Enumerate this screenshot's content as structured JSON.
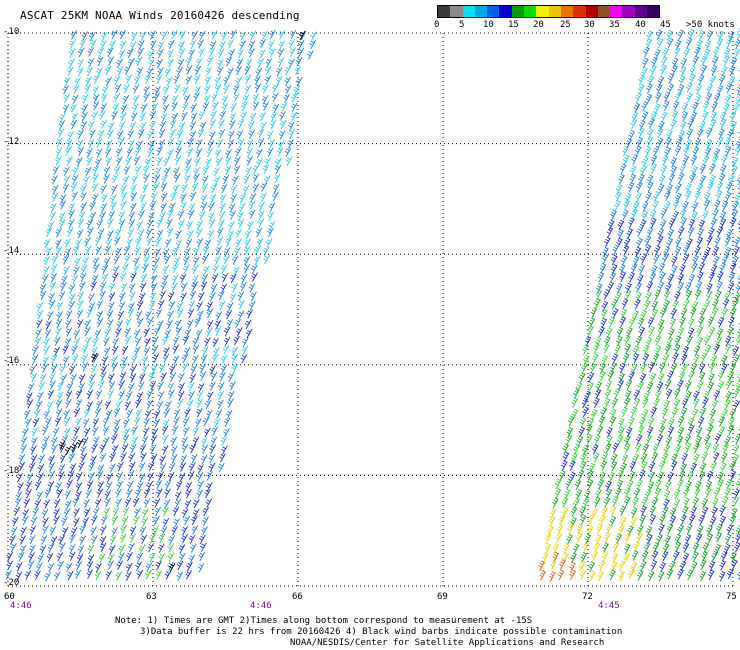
{
  "title": "ASCAT 25KM NOAA Winds 20160426 descending",
  "legend": {
    "labels": [
      "0",
      "5",
      "10",
      "15",
      "20",
      "25",
      "30",
      "35",
      "40",
      "45",
      ">50 knots"
    ],
    "colors": [
      "#3a3a3a",
      "#8a8a8a",
      "#00e0f0",
      "#00a8f0",
      "#0060f0",
      "#0000d0",
      "#00a000",
      "#00e000",
      "#f0f000",
      "#f0c000",
      "#f07000",
      "#e03000",
      "#b00000",
      "#905020",
      "#f000f0",
      "#a000c0",
      "#600090",
      "#300060"
    ]
  },
  "map": {
    "lat_labels": [
      "-10",
      "-12",
      "-14",
      "-16",
      "-18",
      "-20"
    ],
    "lon_labels": [
      "60",
      "63",
      "66",
      "69",
      "72",
      "75"
    ],
    "time_labels": [
      "4:46",
      "4:46",
      "4:45"
    ],
    "wind_colors": {
      "light": "#22c8e8",
      "moderate": "#1a7fe0",
      "strong": "#1a2fd0",
      "fresh": "#10a020",
      "gale": "#30d030",
      "storm": "#e8d000",
      "severe": "#e06010",
      "contaminated": "#000000"
    },
    "swath_west_lon_range": [
      60,
      66
    ],
    "swath_east_lon_range": [
      70.5,
      75
    ]
  },
  "notes": [
    "Note: 1) Times are GMT 2)Times along bottom correspond to measurement at -15S",
    "3)Data buffer is 22 hrs from 20160426 4) Black wind barbs indicate possible contamination",
    "NOAA/NESDIS/Center for Satellite Applications and Research"
  ]
}
